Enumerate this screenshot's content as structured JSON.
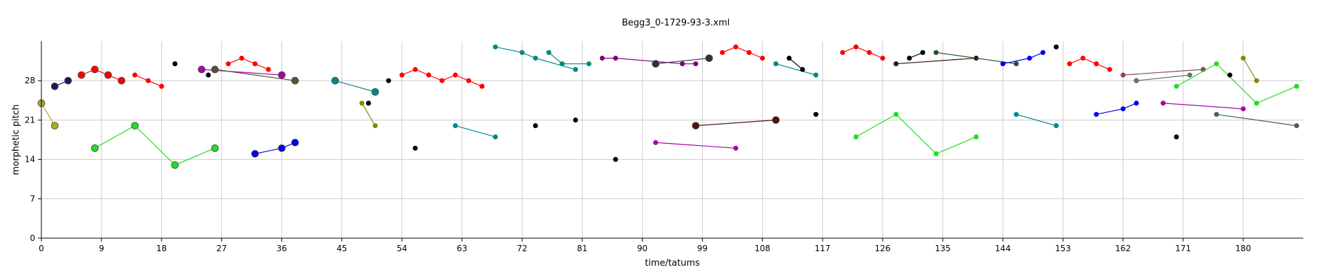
{
  "chart_data": {
    "type": "scatter",
    "title": "Begg3_0-1729-93-3.xml",
    "xlabel": "time/tatums",
    "ylabel": "morphetic pitch",
    "xlim": [
      0,
      189
    ],
    "ylim": [
      0,
      35
    ],
    "xticks": [
      0,
      9,
      18,
      27,
      36,
      45,
      54,
      63,
      72,
      81,
      90,
      99,
      108,
      117,
      126,
      135,
      144,
      153,
      162,
      171,
      180
    ],
    "yticks": [
      0,
      7,
      14,
      21,
      28
    ],
    "grid": true,
    "legend": "none",
    "series": [
      {
        "color": "#aaaa22",
        "size": "large",
        "points": [
          [
            0,
            24
          ],
          [
            2,
            20
          ]
        ]
      },
      {
        "color": "#1a1a60",
        "size": "large",
        "points": [
          [
            2,
            27
          ],
          [
            4,
            28
          ]
        ]
      },
      {
        "color": "#ff0000",
        "size": "large",
        "points": [
          [
            6,
            29
          ],
          [
            8,
            30
          ],
          [
            10,
            29
          ],
          [
            12,
            28
          ]
        ]
      },
      {
        "color": "#ff0000",
        "size": "small",
        "points": [
          [
            14,
            29
          ],
          [
            16,
            28
          ],
          [
            18,
            27
          ]
        ]
      },
      {
        "color": "#22dd22",
        "size": "large",
        "points": [
          [
            8,
            16
          ],
          [
            14,
            20
          ],
          [
            20,
            13
          ],
          [
            26,
            16
          ]
        ]
      },
      {
        "color": "#000000",
        "size": "small",
        "points": [
          [
            20,
            31
          ]
        ]
      },
      {
        "color": "#aa00aa",
        "size": "large",
        "points": [
          [
            24,
            30
          ],
          [
            36,
            29
          ]
        ]
      },
      {
        "color": "#000000",
        "size": "small",
        "points": [
          [
            25,
            29
          ]
        ]
      },
      {
        "color": "#555533",
        "size": "large",
        "points": [
          [
            26,
            30
          ],
          [
            38,
            28
          ]
        ]
      },
      {
        "color": "#ff0000",
        "size": "small",
        "points": [
          [
            28,
            31
          ],
          [
            30,
            32
          ],
          [
            32,
            31
          ],
          [
            34,
            30
          ]
        ]
      },
      {
        "color": "#0000ee",
        "size": "large",
        "points": [
          [
            32,
            15
          ],
          [
            36,
            16
          ],
          [
            38,
            17
          ]
        ]
      },
      {
        "color": "#008888",
        "size": "large",
        "points": [
          [
            44,
            28
          ],
          [
            50,
            26
          ]
        ]
      },
      {
        "color": "#888800",
        "size": "small",
        "points": [
          [
            48,
            24
          ],
          [
            50,
            20
          ]
        ]
      },
      {
        "color": "#000000",
        "size": "small",
        "points": [
          [
            49,
            24
          ]
        ]
      },
      {
        "color": "#000000",
        "size": "small",
        "points": [
          [
            52,
            28
          ]
        ]
      },
      {
        "color": "#ff0000",
        "size": "small",
        "points": [
          [
            54,
            29
          ],
          [
            56,
            30
          ],
          [
            58,
            29
          ],
          [
            60,
            28
          ],
          [
            62,
            29
          ],
          [
            64,
            28
          ],
          [
            66,
            27
          ]
        ]
      },
      {
        "color": "#000000",
        "size": "small",
        "points": [
          [
            56,
            16
          ]
        ]
      },
      {
        "color": "#008888",
        "size": "small",
        "points": [
          [
            62,
            20
          ],
          [
            68,
            18
          ]
        ]
      },
      {
        "color": "#008888",
        "size": "small",
        "points": [
          [
            68,
            34
          ],
          [
            72,
            33
          ],
          [
            74,
            32
          ],
          [
            80,
            30
          ]
        ]
      },
      {
        "color": "#008888",
        "size": "small",
        "points": [
          [
            76,
            33
          ],
          [
            78,
            31
          ],
          [
            82,
            31
          ]
        ]
      },
      {
        "color": "#000000",
        "size": "small",
        "points": [
          [
            74,
            20
          ]
        ]
      },
      {
        "color": "#000000",
        "size": "small",
        "points": [
          [
            80,
            21
          ]
        ]
      },
      {
        "color": "#000000",
        "size": "small",
        "points": [
          [
            86,
            14
          ]
        ]
      },
      {
        "color": "#800080",
        "size": "small",
        "points": [
          [
            84,
            32
          ],
          [
            86,
            32
          ],
          [
            96,
            31
          ],
          [
            98,
            31
          ]
        ]
      },
      {
        "color": "#333333",
        "size": "large",
        "points": [
          [
            92,
            31
          ],
          [
            100,
            32
          ]
        ]
      },
      {
        "color": "#aa00aa",
        "size": "small",
        "points": [
          [
            92,
            17
          ],
          [
            104,
            16
          ]
        ]
      },
      {
        "color": "#551111",
        "size": "large",
        "points": [
          [
            98,
            20
          ],
          [
            110,
            21
          ]
        ]
      },
      {
        "color": "#ff0000",
        "size": "small",
        "points": [
          [
            102,
            33
          ],
          [
            104,
            34
          ],
          [
            106,
            33
          ],
          [
            108,
            32
          ]
        ]
      },
      {
        "color": "#008888",
        "size": "small",
        "points": [
          [
            110,
            31
          ],
          [
            116,
            29
          ]
        ]
      },
      {
        "color": "#000000",
        "size": "small",
        "points": [
          [
            112,
            32
          ],
          [
            114,
            30
          ]
        ]
      },
      {
        "color": "#000000",
        "size": "small",
        "points": [
          [
            116,
            22
          ]
        ]
      },
      {
        "color": "#ff0000",
        "size": "small",
        "points": [
          [
            120,
            33
          ],
          [
            122,
            34
          ],
          [
            124,
            33
          ],
          [
            126,
            32
          ]
        ]
      },
      {
        "color": "#22dd22",
        "size": "small",
        "points": [
          [
            122,
            18
          ],
          [
            128,
            22
          ],
          [
            134,
            15
          ],
          [
            140,
            18
          ]
        ]
      },
      {
        "color": "#331111",
        "size": "small",
        "points": [
          [
            128,
            31
          ],
          [
            140,
            32
          ]
        ]
      },
      {
        "color": "#000000",
        "size": "small",
        "points": [
          [
            130,
            32
          ],
          [
            132,
            33
          ]
        ]
      },
      {
        "color": "#225522",
        "size": "small",
        "points": [
          [
            134,
            33
          ],
          [
            146,
            31
          ]
        ]
      },
      {
        "color": "#0000ee",
        "size": "small",
        "points": [
          [
            144,
            31
          ],
          [
            148,
            32
          ],
          [
            150,
            33
          ]
        ]
      },
      {
        "color": "#000000",
        "size": "small",
        "points": [
          [
            152,
            34
          ]
        ]
      },
      {
        "color": "#008888",
        "size": "small",
        "points": [
          [
            146,
            22
          ],
          [
            152,
            20
          ]
        ]
      },
      {
        "color": "#ff0000",
        "size": "small",
        "points": [
          [
            154,
            31
          ],
          [
            156,
            32
          ],
          [
            158,
            31
          ],
          [
            160,
            30
          ]
        ]
      },
      {
        "color": "#0000ee",
        "size": "small",
        "points": [
          [
            158,
            22
          ],
          [
            162,
            23
          ],
          [
            164,
            24
          ]
        ]
      },
      {
        "color": "#884466",
        "size": "small",
        "points": [
          [
            162,
            29
          ],
          [
            174,
            30
          ]
        ]
      },
      {
        "color": "#000000",
        "size": "small",
        "points": [
          [
            164,
            28
          ]
        ]
      },
      {
        "color": "#667766",
        "size": "small",
        "points": [
          [
            164,
            28
          ],
          [
            172,
            29
          ]
        ]
      },
      {
        "color": "#aa00aa",
        "size": "small",
        "points": [
          [
            168,
            24
          ],
          [
            180,
            23
          ]
        ]
      },
      {
        "color": "#22dd22",
        "size": "small",
        "points": [
          [
            170,
            27
          ],
          [
            176,
            31
          ],
          [
            182,
            24
          ],
          [
            188,
            27
          ]
        ]
      },
      {
        "color": "#000000",
        "size": "small",
        "points": [
          [
            170,
            18
          ]
        ]
      },
      {
        "color": "#000000",
        "size": "small",
        "points": [
          [
            178,
            29
          ]
        ]
      },
      {
        "color": "#888800",
        "size": "small",
        "points": [
          [
            180,
            32
          ],
          [
            182,
            28
          ]
        ]
      },
      {
        "color": "#446644",
        "size": "small",
        "points": [
          [
            176,
            22
          ],
          [
            188,
            20
          ]
        ]
      }
    ]
  }
}
